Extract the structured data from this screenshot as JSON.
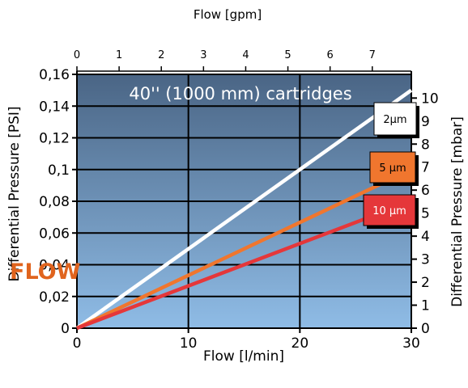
{
  "chart_data": {
    "type": "line",
    "title": "40'' (1000 mm) cartridges",
    "xlabel": "Flow [l/min]",
    "x2label": "Flow [gpm]",
    "ylabel": "Differential Pressure [PSI]",
    "y2label": "Differential Pressure [mbar]",
    "xlim": [
      0,
      30
    ],
    "x2lim": [
      0,
      7.925
    ],
    "ylim": [
      0,
      0.16
    ],
    "y2lim": [
      0,
      11.03
    ],
    "xticks": [
      "0",
      "10",
      "20",
      "30"
    ],
    "x2ticks": [
      "0",
      "1",
      "2",
      "3",
      "4",
      "5",
      "6",
      "7"
    ],
    "yticks": [
      "0",
      "0,02",
      "0,04",
      "0,06",
      "0,08",
      "0,1",
      "0,12",
      "0,14",
      "0,16"
    ],
    "y2ticks": [
      "0",
      "1",
      "2",
      "3",
      "4",
      "5",
      "6",
      "7",
      "8",
      "9",
      "10"
    ],
    "grid": true,
    "background_colors": [
      "#8fbce6",
      "#4a6585"
    ],
    "series": [
      {
        "name": "2µm",
        "x": [
          0,
          30
        ],
        "y": [
          0,
          0.15
        ],
        "color": "#ffffff"
      },
      {
        "name": "5 µm",
        "x": [
          0,
          30
        ],
        "y": [
          0,
          0.1
        ],
        "color": "#f0762e"
      },
      {
        "name": "10 µm",
        "x": [
          0,
          30
        ],
        "y": [
          0,
          0.08
        ],
        "color": "#e5373a"
      }
    ],
    "legend_placement": "right, at line ends"
  },
  "watermark": "FLOW"
}
